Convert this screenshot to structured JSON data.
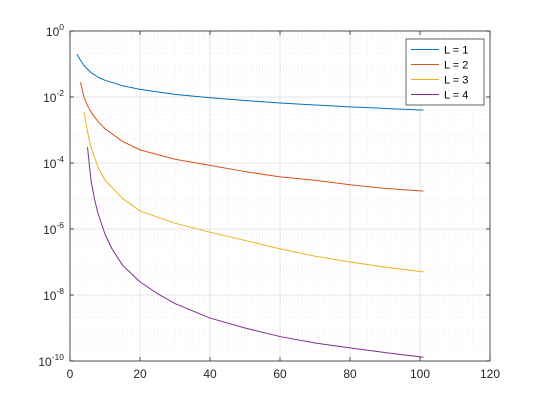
{
  "chart_data": {
    "type": "line",
    "xscale": "linear",
    "yscale": "log",
    "xlim": [
      0,
      120
    ],
    "ylim": [
      1e-10,
      1
    ],
    "x_ticks": [
      0,
      20,
      40,
      60,
      80,
      100,
      120
    ],
    "x_tick_labels": [
      "0",
      "20",
      "40",
      "60",
      "80",
      "100",
      "120"
    ],
    "y_ticks": [
      1e-10,
      1e-08,
      1e-06,
      0.0001,
      0.01,
      1
    ],
    "y_tick_labels": [
      {
        "base": "10",
        "exp": "-10"
      },
      {
        "base": "10",
        "exp": "-8"
      },
      {
        "base": "10",
        "exp": "-6"
      },
      {
        "base": "10",
        "exp": "-4"
      },
      {
        "base": "10",
        "exp": "-2"
      },
      {
        "base": "10",
        "exp": "0"
      }
    ],
    "grid": true,
    "minor_grid": true,
    "legend_position": "top-right",
    "series": [
      {
        "name": "L = 1",
        "color": "#0072BD",
        "x": [
          2,
          3,
          4,
          5,
          6,
          8,
          10,
          15,
          20,
          30,
          40,
          50,
          60,
          70,
          80,
          90,
          101
        ],
        "y": [
          0.2,
          0.13,
          0.09,
          0.07,
          0.055,
          0.04,
          0.032,
          0.022,
          0.017,
          0.012,
          0.0095,
          0.0078,
          0.0066,
          0.0057,
          0.005,
          0.0045,
          0.004
        ]
      },
      {
        "name": "L = 2",
        "color": "#D95319",
        "x": [
          3,
          4,
          5,
          6,
          8,
          10,
          15,
          20,
          30,
          40,
          50,
          60,
          70,
          80,
          90,
          101
        ],
        "y": [
          0.028,
          0.01,
          0.0055,
          0.0035,
          0.0018,
          0.0011,
          0.00045,
          0.00025,
          0.00013,
          8.5e-05,
          5.5e-05,
          3.8e-05,
          3e-05,
          2.2e-05,
          1.7e-05,
          1.4e-05
        ]
      },
      {
        "name": "L = 3",
        "color": "#EDB120",
        "x": [
          4,
          5,
          6,
          8,
          10,
          15,
          20,
          30,
          40,
          50,
          60,
          70,
          80,
          90,
          101
        ],
        "y": [
          0.0035,
          0.0009,
          0.0003,
          7.5e-05,
          3e-05,
          8.5e-06,
          3.5e-06,
          1.5e-06,
          8e-07,
          4.5e-07,
          2.5e-07,
          1.5e-07,
          1e-07,
          7e-08,
          5e-08
        ]
      },
      {
        "name": "L = 4",
        "color": "#7E2F8E",
        "x": [
          5,
          6,
          7,
          8,
          10,
          12,
          15,
          20,
          25,
          30,
          40,
          50,
          60,
          70,
          80,
          90,
          101
        ],
        "y": [
          0.0003,
          3e-05,
          8e-06,
          3e-06,
          7e-07,
          2.5e-07,
          8e-08,
          2.5e-08,
          1.1e-08,
          5.5e-09,
          2e-09,
          1e-09,
          5.5e-10,
          3.5e-10,
          2.5e-10,
          1.8e-10,
          1.3e-10
        ]
      }
    ]
  }
}
